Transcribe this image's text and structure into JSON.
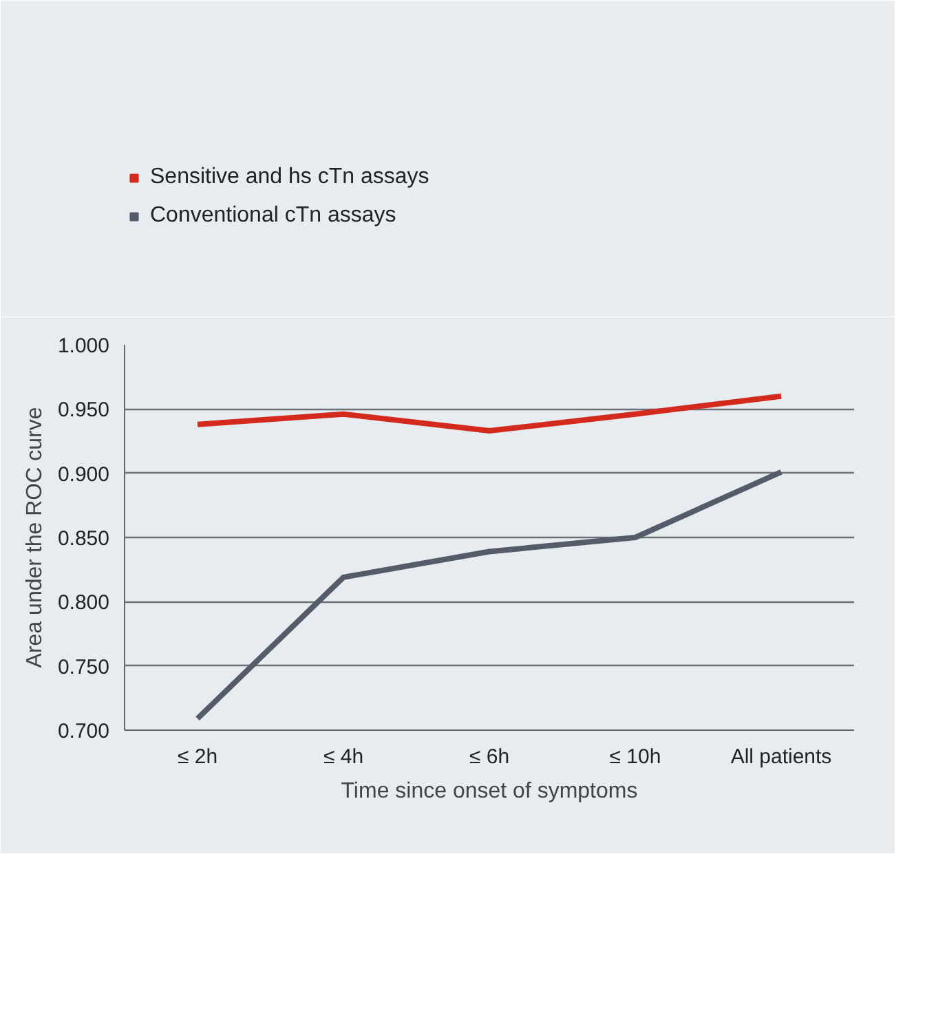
{
  "chart_data": {
    "type": "line",
    "xlabel": "Time since onset of symptoms",
    "ylabel": "Area under the ROC curve",
    "categories": [
      "≤ 2h",
      "≤ 4h",
      "≤ 6h",
      "≤ 10h",
      "All patients"
    ],
    "series": [
      {
        "name": "Sensitive and hs cTn assays",
        "color": "#d42a1e",
        "values": [
          0.938,
          0.946,
          0.933,
          0.946,
          0.96
        ]
      },
      {
        "name": "Conventional cTn assays",
        "color": "#555b68",
        "values": [
          0.709,
          0.819,
          0.839,
          0.85,
          0.901
        ]
      }
    ],
    "ylim": [
      0.7,
      1.0
    ],
    "yticks": [
      {
        "value": 0.7,
        "label": "0.700"
      },
      {
        "value": 0.75,
        "label": "0.750"
      },
      {
        "value": 0.8,
        "label": "0.800"
      },
      {
        "value": 0.85,
        "label": "0.850"
      },
      {
        "value": 0.9,
        "label": "0.900"
      },
      {
        "value": 0.95,
        "label": "0.950"
      },
      {
        "value": 1.0,
        "label": "1.000"
      }
    ],
    "grid": "y",
    "legend": "top left",
    "marker": "none",
    "line_style": "solid"
  }
}
